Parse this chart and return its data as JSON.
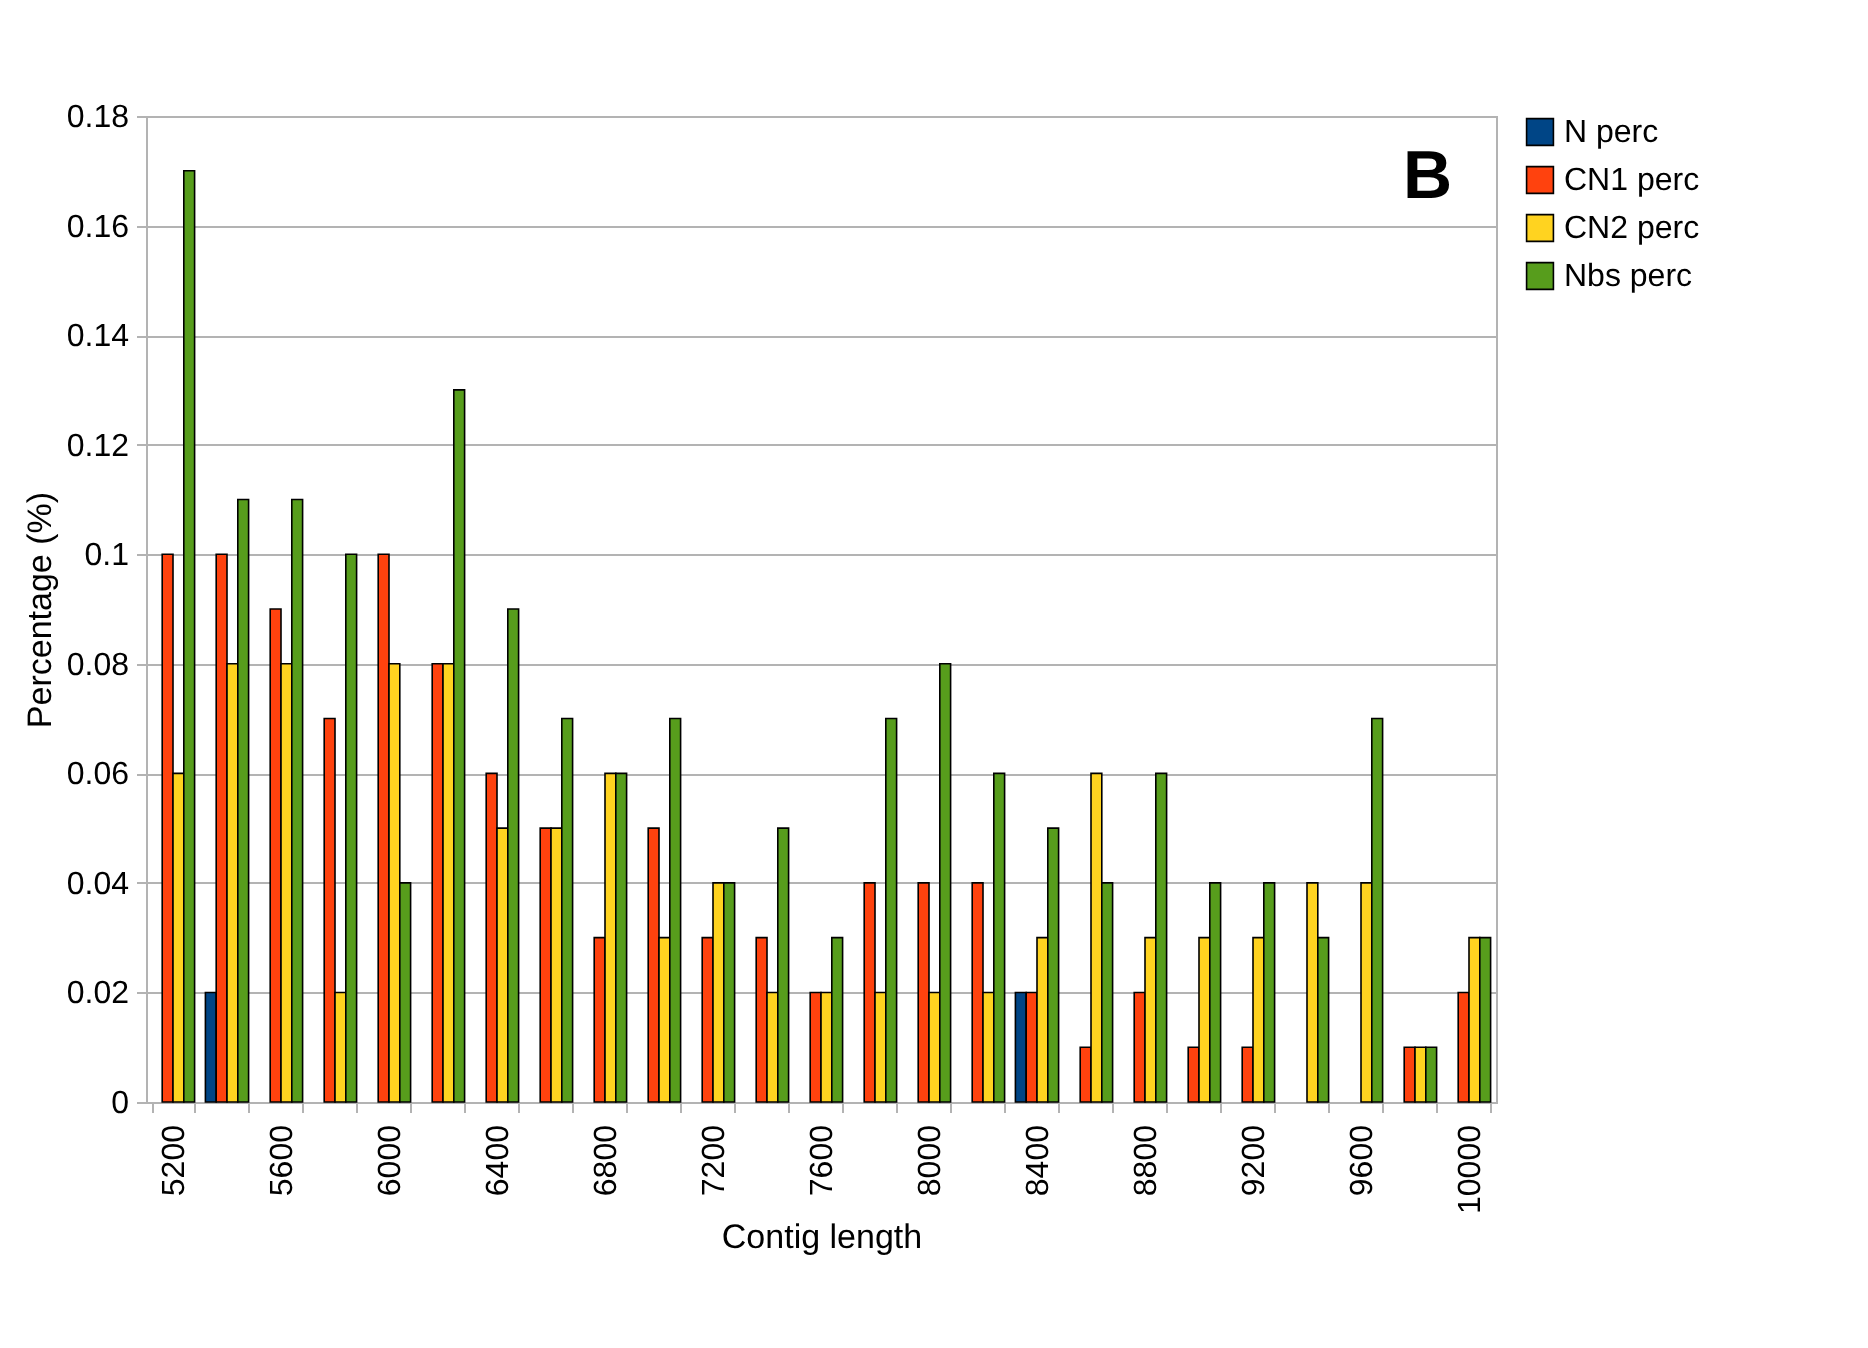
{
  "chart_data": {
    "type": "bar",
    "xlabel": "Contig length",
    "ylabel": "Percentage (%)",
    "annotations": [
      "B"
    ],
    "categories": [
      "5200",
      null,
      "5600",
      null,
      "6000",
      null,
      "6400",
      null,
      "6800",
      null,
      "7200",
      null,
      "7600",
      null,
      "8000",
      null,
      "8400",
      null,
      "8800",
      null,
      "9200",
      null,
      "9600",
      null,
      "10000"
    ],
    "series": [
      {
        "name": "N perc",
        "color": "#004586",
        "values": [
          null,
          0.02,
          null,
          null,
          null,
          null,
          null,
          null,
          null,
          null,
          null,
          null,
          null,
          null,
          null,
          null,
          0.02,
          null,
          null,
          null,
          null,
          null,
          null,
          null,
          null
        ]
      },
      {
        "name": "CN1 perc",
        "color": "#ff420e",
        "values": [
          0.1,
          0.1,
          0.09,
          0.07,
          0.1,
          0.08,
          0.06,
          0.05,
          0.03,
          0.05,
          0.03,
          0.03,
          0.02,
          0.04,
          0.04,
          0.04,
          0.02,
          0.01,
          0.02,
          0.01,
          0.01,
          null,
          null,
          0.01,
          0.02
        ]
      },
      {
        "name": "CN2 perc",
        "color": "#ffd320",
        "values": [
          0.06,
          0.08,
          0.08,
          0.02,
          0.08,
          0.08,
          0.05,
          0.05,
          0.06,
          0.03,
          0.04,
          0.02,
          0.02,
          0.02,
          0.02,
          0.02,
          0.03,
          0.06,
          0.03,
          0.03,
          0.03,
          0.04,
          0.04,
          0.01,
          0.03
        ]
      },
      {
        "name": "Nbs perc",
        "color": "#579d1c",
        "values": [
          0.17,
          0.11,
          0.11,
          0.1,
          0.04,
          0.13,
          0.09,
          0.07,
          0.06,
          0.07,
          0.04,
          0.05,
          0.03,
          0.07,
          0.08,
          0.06,
          0.05,
          0.04,
          0.06,
          0.04,
          0.04,
          0.03,
          0.07,
          0.01,
          0.03
        ]
      }
    ],
    "ylim": [
      0,
      0.18
    ],
    "yticks": [
      0,
      0.02,
      0.04,
      0.06,
      0.08,
      0.1,
      0.12,
      0.14,
      0.16,
      0.18
    ],
    "grid": "y",
    "legend": "right"
  }
}
